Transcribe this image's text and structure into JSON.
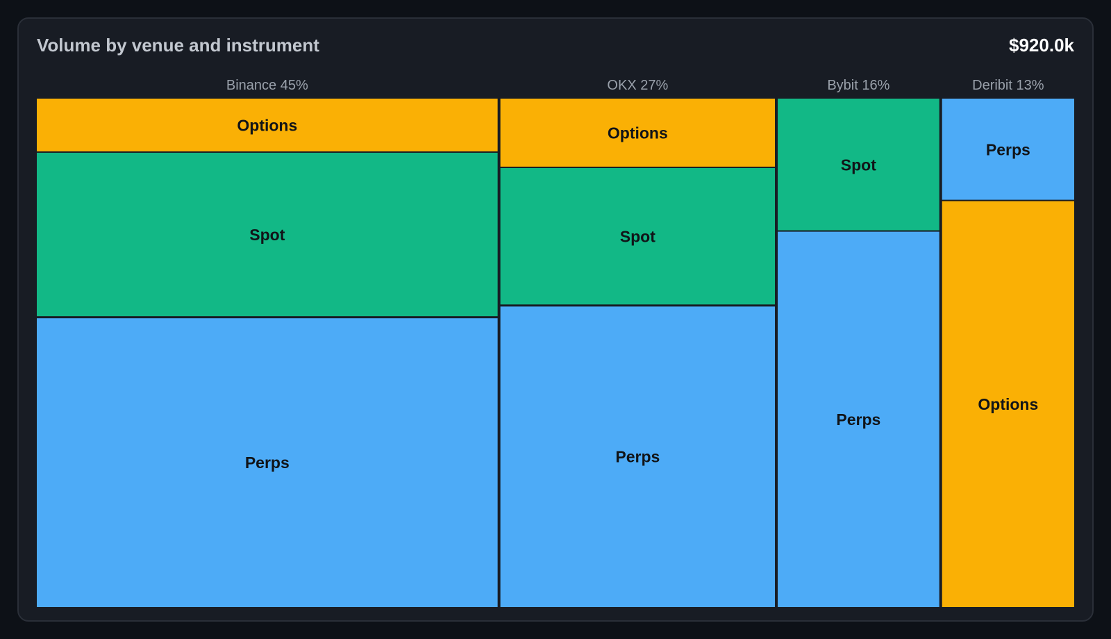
{
  "header": {
    "title": "Volume by venue and instrument",
    "total": "$920.0k"
  },
  "colors": {
    "Perps": "#4dabf7",
    "Spot": "#12b886",
    "Options": "#fab005",
    "background": "#0d1117",
    "card": "#181c24",
    "venue_label": "#9aa1ab",
    "segment_label": "#111418"
  },
  "chart_data": {
    "type": "marimekko",
    "title": "Volume by venue and instrument",
    "total_label": "$920.0k",
    "venues": [
      {
        "name": "Binance",
        "share_label": "45%",
        "share": 0.45,
        "segments": [
          {
            "instrument": "Options",
            "fraction": 0.105
          },
          {
            "instrument": "Spot",
            "fraction": 0.325
          },
          {
            "instrument": "Perps",
            "fraction": 0.57
          }
        ]
      },
      {
        "name": "OKX",
        "share_label": "27%",
        "share": 0.27,
        "segments": [
          {
            "instrument": "Options",
            "fraction": 0.135
          },
          {
            "instrument": "Spot",
            "fraction": 0.272
          },
          {
            "instrument": "Perps",
            "fraction": 0.593
          }
        ]
      },
      {
        "name": "Bybit",
        "share_label": "16%",
        "share": 0.16,
        "segments": [
          {
            "instrument": "Spot",
            "fraction": 0.26
          },
          {
            "instrument": "Perps",
            "fraction": 0.74
          }
        ]
      },
      {
        "name": "Deribit",
        "share_label": "13%",
        "share": 0.13,
        "segments": [
          {
            "instrument": "Perps",
            "fraction": 0.2
          },
          {
            "instrument": "Options",
            "fraction": 0.8
          }
        ]
      }
    ]
  }
}
